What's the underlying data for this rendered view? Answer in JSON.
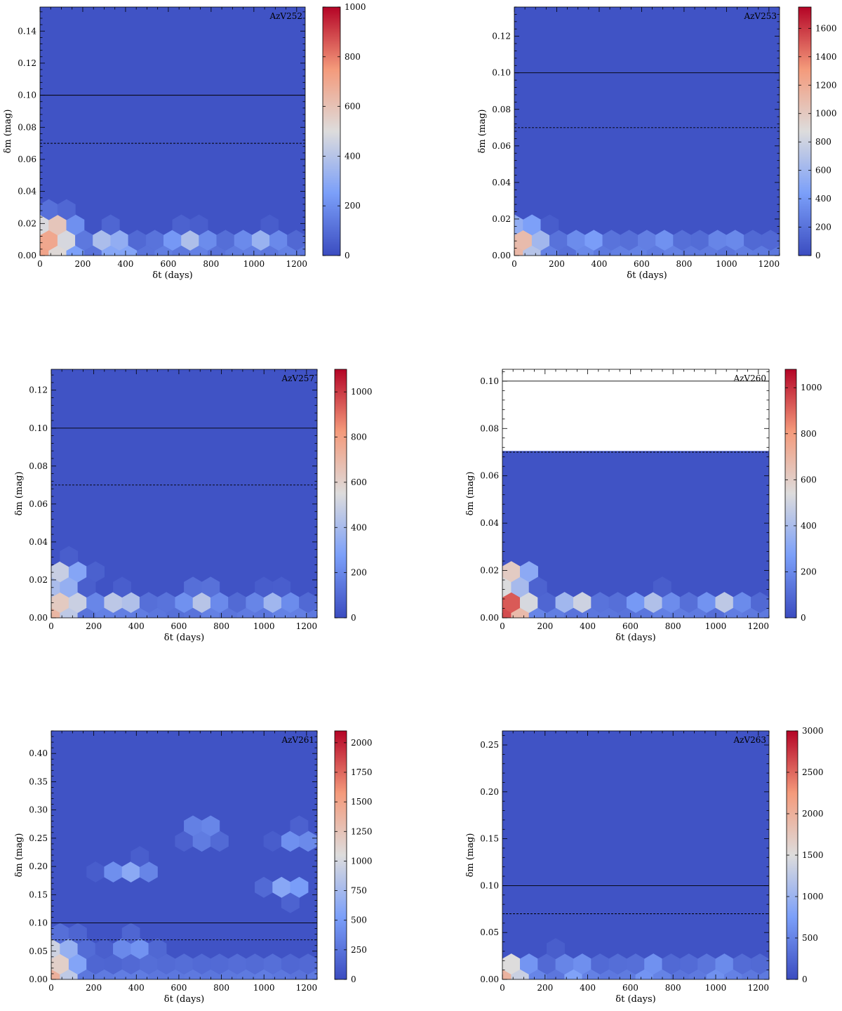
{
  "figure": {
    "xlabel": "δt (days)",
    "ylabel": "δm (mag)"
  },
  "chart_data": [
    {
      "type": "heatmap",
      "subtype": "hexbin",
      "title": "AzV252",
      "xlabel": "δt (days)",
      "ylabel": "δm (mag)",
      "xlim": [
        0,
        1240
      ],
      "ylim": [
        0,
        0.155
      ],
      "xticks": [
        0,
        200,
        400,
        600,
        800,
        1000,
        1200
      ],
      "yticks": [
        0.0,
        0.02,
        0.04,
        0.06,
        0.08,
        0.1,
        0.12,
        0.14
      ],
      "ytick_labels": [
        "0.00",
        "0.02",
        "0.04",
        "0.06",
        "0.08",
        "0.10",
        "0.12",
        "0.14"
      ],
      "colorbar": {
        "min": 0,
        "max": 1000,
        "ticks": [
          0,
          200,
          400,
          600,
          800,
          1000
        ],
        "colormap": "coolwarm"
      },
      "reference_lines": [
        {
          "y": 0.1,
          "style": "solid"
        },
        {
          "y": 0.07,
          "style": "dashed"
        }
      ],
      "data_extent_y": 0.155,
      "hotspots": [
        {
          "x": 20,
          "y": 0.004,
          "value": 1000
        },
        {
          "x": 20,
          "y": 0.013,
          "value": 1000
        },
        {
          "x": 60,
          "y": 0.008,
          "value": 720
        },
        {
          "x": 40,
          "y": 0.02,
          "value": 650
        },
        {
          "x": 80,
          "y": 0.004,
          "value": 680
        },
        {
          "x": 100,
          "y": 0.015,
          "value": 450
        },
        {
          "x": 320,
          "y": 0.01,
          "value": 430
        },
        {
          "x": 360,
          "y": 0.004,
          "value": 450
        },
        {
          "x": 700,
          "y": 0.01,
          "value": 380
        },
        {
          "x": 1030,
          "y": 0.01,
          "value": 360
        }
      ]
    },
    {
      "type": "heatmap",
      "subtype": "hexbin",
      "title": "AzV253",
      "xlabel": "δt (days)",
      "ylabel": "δm (mag)",
      "xlim": [
        0,
        1250
      ],
      "ylim": [
        0,
        0.136
      ],
      "xticks": [
        0,
        200,
        400,
        600,
        800,
        1000,
        1200
      ],
      "yticks": [
        0.0,
        0.02,
        0.04,
        0.06,
        0.08,
        0.1,
        0.12
      ],
      "ytick_labels": [
        "0.00",
        "0.02",
        "0.04",
        "0.06",
        "0.08",
        "0.10",
        "0.12"
      ],
      "colorbar": {
        "min": 0,
        "max": 1750,
        "ticks": [
          0,
          200,
          400,
          600,
          800,
          1000,
          1200,
          1400,
          1600
        ],
        "colormap": "coolwarm"
      },
      "reference_lines": [
        {
          "y": 0.1,
          "style": "solid"
        },
        {
          "y": 0.07,
          "style": "dashed"
        }
      ],
      "data_extent_y": 0.136,
      "hotspots": [
        {
          "x": 20,
          "y": 0.004,
          "value": 1750
        },
        {
          "x": 20,
          "y": 0.012,
          "value": 1100
        },
        {
          "x": 60,
          "y": 0.006,
          "value": 1000
        },
        {
          "x": 90,
          "y": 0.005,
          "value": 900
        },
        {
          "x": 340,
          "y": 0.005,
          "value": 650
        },
        {
          "x": 700,
          "y": 0.006,
          "value": 450
        },
        {
          "x": 1000,
          "y": 0.006,
          "value": 420
        }
      ]
    },
    {
      "type": "heatmap",
      "subtype": "hexbin",
      "title": "AzV257",
      "xlabel": "δt (days)",
      "ylabel": "δm (mag)",
      "xlim": [
        0,
        1250
      ],
      "ylim": [
        0,
        0.131
      ],
      "xticks": [
        0,
        200,
        400,
        600,
        800,
        1000,
        1200
      ],
      "yticks": [
        0.0,
        0.02,
        0.04,
        0.06,
        0.08,
        0.1,
        0.12
      ],
      "ytick_labels": [
        "0.00",
        "0.02",
        "0.04",
        "0.06",
        "0.08",
        "0.10",
        "0.12"
      ],
      "colorbar": {
        "min": 0,
        "max": 1100,
        "ticks": [
          0,
          200,
          400,
          600,
          800,
          1000
        ],
        "colormap": "coolwarm"
      },
      "reference_lines": [
        {
          "y": 0.1,
          "style": "solid"
        },
        {
          "y": 0.07,
          "style": "dashed"
        }
      ],
      "data_extent_y": 0.131,
      "hotspots": [
        {
          "x": 20,
          "y": 0.004,
          "value": 1100
        },
        {
          "x": 20,
          "y": 0.012,
          "value": 850
        },
        {
          "x": 20,
          "y": 0.02,
          "value": 780
        },
        {
          "x": 60,
          "y": 0.008,
          "value": 650
        },
        {
          "x": 60,
          "y": 0.024,
          "value": 520
        },
        {
          "x": 320,
          "y": 0.008,
          "value": 520
        },
        {
          "x": 700,
          "y": 0.01,
          "value": 430
        },
        {
          "x": 1050,
          "y": 0.008,
          "value": 380
        }
      ]
    },
    {
      "type": "heatmap",
      "subtype": "hexbin",
      "title": "AzV260",
      "xlabel": "δt (days)",
      "ylabel": "δm (mag)",
      "xlim": [
        0,
        1250
      ],
      "ylim": [
        0,
        0.105
      ],
      "xticks": [
        0,
        200,
        400,
        600,
        800,
        1000,
        1200
      ],
      "yticks": [
        0.0,
        0.02,
        0.04,
        0.06,
        0.08,
        0.1
      ],
      "ytick_labels": [
        "0.00",
        "0.02",
        "0.04",
        "0.06",
        "0.08",
        "0.10"
      ],
      "colorbar": {
        "min": 0,
        "max": 1080,
        "ticks": [
          0,
          200,
          400,
          600,
          800,
          1000
        ],
        "colormap": "coolwarm"
      },
      "reference_lines": [
        {
          "y": 0.1,
          "style": "solid"
        },
        {
          "y": 0.07,
          "style": "dashed"
        }
      ],
      "data_extent_y": 0.0705,
      "hotspots": [
        {
          "x": 20,
          "y": 0.002,
          "value": 1080
        },
        {
          "x": 20,
          "y": 0.01,
          "value": 850
        },
        {
          "x": 50,
          "y": 0.006,
          "value": 800
        },
        {
          "x": 80,
          "y": 0.004,
          "value": 700
        },
        {
          "x": 40,
          "y": 0.018,
          "value": 600
        },
        {
          "x": 340,
          "y": 0.006,
          "value": 480
        },
        {
          "x": 700,
          "y": 0.006,
          "value": 420
        },
        {
          "x": 1030,
          "y": 0.006,
          "value": 400
        }
      ]
    },
    {
      "type": "heatmap",
      "subtype": "hexbin",
      "title": "AzV261",
      "xlabel": "δt (days)",
      "ylabel": "δm (mag)",
      "xlim": [
        0,
        1250
      ],
      "ylim": [
        0,
        0.44
      ],
      "xticks": [
        0,
        200,
        400,
        600,
        800,
        1000,
        1200
      ],
      "yticks": [
        0.0,
        0.05,
        0.1,
        0.15,
        0.2,
        0.25,
        0.3,
        0.35,
        0.4
      ],
      "ytick_labels": [
        "0.00",
        "0.05",
        "0.10",
        "0.15",
        "0.20",
        "0.25",
        "0.30",
        "0.35",
        "0.40"
      ],
      "colorbar": {
        "min": 0,
        "max": 2100,
        "ticks": [
          0,
          250,
          500,
          750,
          1000,
          1250,
          1500,
          1750,
          2000
        ],
        "colormap": "coolwarm"
      },
      "reference_lines": [
        {
          "y": 0.1,
          "style": "solid"
        },
        {
          "y": 0.07,
          "style": "dashed"
        }
      ],
      "data_extent_y": 0.44,
      "hotspots": [
        {
          "x": 20,
          "y": 0.013,
          "value": 2100
        },
        {
          "x": 20,
          "y": 0.04,
          "value": 1500
        },
        {
          "x": 40,
          "y": 0.025,
          "value": 1000
        },
        {
          "x": 60,
          "y": 0.06,
          "value": 700
        },
        {
          "x": 370,
          "y": 0.19,
          "value": 650
        },
        {
          "x": 380,
          "y": 0.06,
          "value": 520
        },
        {
          "x": 720,
          "y": 0.26,
          "value": 520
        },
        {
          "x": 1110,
          "y": 0.16,
          "value": 600
        },
        {
          "x": 1150,
          "y": 0.25,
          "value": 450
        }
      ]
    },
    {
      "type": "heatmap",
      "subtype": "hexbin",
      "title": "AzV263",
      "xlabel": "δt (days)",
      "ylabel": "δm (mag)",
      "xlim": [
        0,
        1250
      ],
      "ylim": [
        0,
        0.265
      ],
      "xticks": [
        0,
        200,
        400,
        600,
        800,
        1000,
        1200
      ],
      "yticks": [
        0.0,
        0.05,
        0.1,
        0.15,
        0.2,
        0.25
      ],
      "ytick_labels": [
        "0.00",
        "0.05",
        "0.10",
        "0.15",
        "0.20",
        "0.25"
      ],
      "colorbar": {
        "min": 0,
        "max": 3000,
        "ticks": [
          0,
          500,
          1000,
          1500,
          2000,
          2500,
          3000
        ],
        "colormap": "coolwarm"
      },
      "reference_lines": [
        {
          "y": 0.1,
          "style": "solid"
        },
        {
          "y": 0.07,
          "style": "dashed"
        }
      ],
      "data_extent_y": 0.265,
      "hotspots": [
        {
          "x": 20,
          "y": 0.008,
          "value": 3000
        },
        {
          "x": 60,
          "y": 0.008,
          "value": 2000
        },
        {
          "x": 100,
          "y": 0.008,
          "value": 1300
        },
        {
          "x": 340,
          "y": 0.008,
          "value": 1100
        },
        {
          "x": 700,
          "y": 0.008,
          "value": 1000
        },
        {
          "x": 1040,
          "y": 0.008,
          "value": 1000
        }
      ]
    }
  ]
}
